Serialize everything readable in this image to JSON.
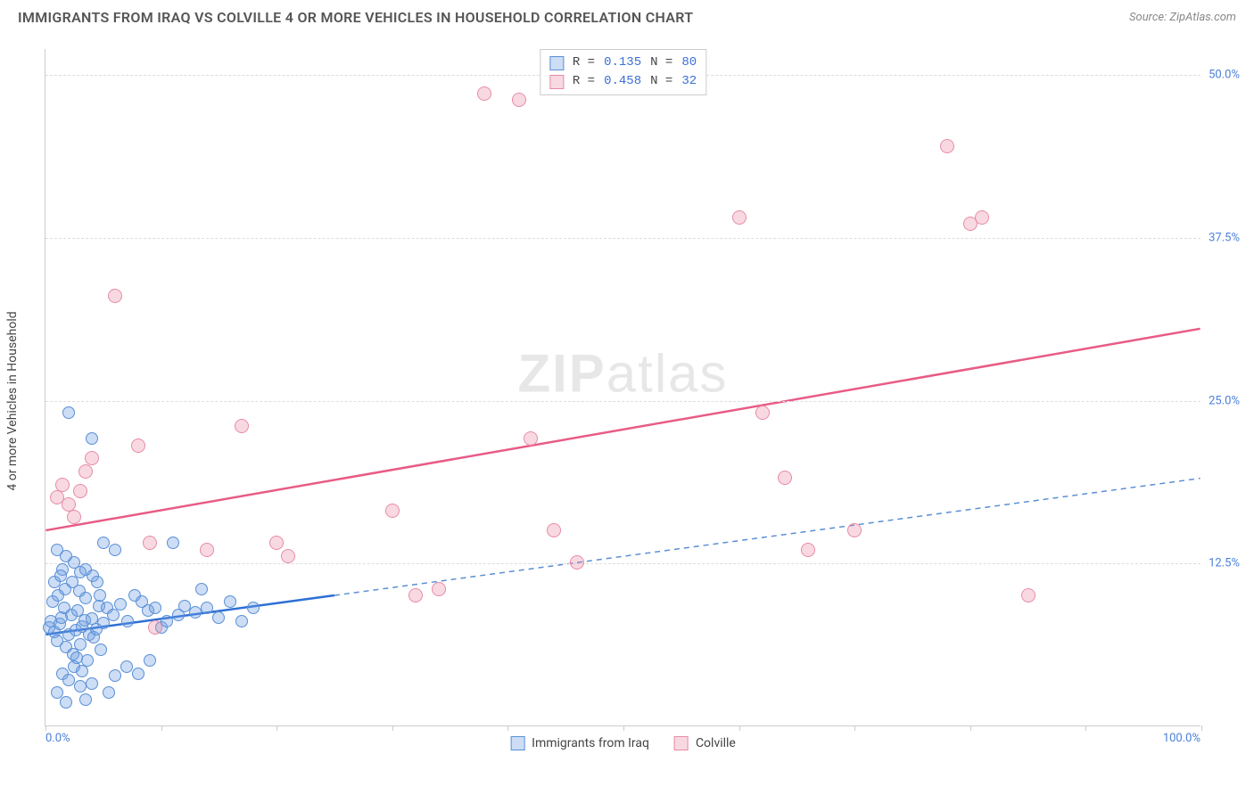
{
  "title": "IMMIGRANTS FROM IRAQ VS COLVILLE 4 OR MORE VEHICLES IN HOUSEHOLD CORRELATION CHART",
  "source": "Source: ZipAtlas.com",
  "ylabel": "4 or more Vehicles in Household",
  "watermark_a": "ZIP",
  "watermark_b": "atlas",
  "chart": {
    "type": "scatter",
    "xlim": [
      0,
      100
    ],
    "ylim": [
      0,
      52
    ],
    "xtick_positions": [
      0,
      10,
      20,
      30,
      40,
      50,
      60,
      70,
      80,
      90,
      100
    ],
    "xtick_labels": {
      "0": "0.0%",
      "100": "100.0%"
    },
    "ytick_positions": [
      12.5,
      25.0,
      37.5,
      50.0
    ],
    "ytick_labels": [
      "12.5%",
      "25.0%",
      "37.5%",
      "50.0%"
    ],
    "grid_color": "#dddddd",
    "axis_color": "#cccccc",
    "background_color": "#ffffff",
    "label_color": "#4a7fd8",
    "series": [
      {
        "name": "Immigrants from Iraq",
        "key": "iraq",
        "R": "0.135",
        "N": "80",
        "fill": "rgba(108,159,227,0.35)",
        "stroke": "#5a8fd6",
        "trend_color": "#2e6fd6",
        "trend_dash_color": "#5a8fd6",
        "marker_radius": 7,
        "trend": {
          "x1": 0,
          "y1": 7.0,
          "x2_solid": 25,
          "y2_solid": 10.0,
          "x2": 100,
          "y2": 19.0
        },
        "points": [
          [
            0.3,
            7.5
          ],
          [
            0.5,
            8.0
          ],
          [
            0.8,
            7.2
          ],
          [
            1.0,
            6.5
          ],
          [
            1.2,
            7.8
          ],
          [
            1.4,
            8.3
          ],
          [
            1.6,
            9.0
          ],
          [
            1.8,
            6.0
          ],
          [
            2.0,
            7.0
          ],
          [
            2.2,
            8.5
          ],
          [
            2.4,
            5.5
          ],
          [
            2.6,
            7.3
          ],
          [
            2.8,
            8.8
          ],
          [
            3.0,
            6.2
          ],
          [
            3.2,
            7.6
          ],
          [
            3.4,
            8.1
          ],
          [
            3.6,
            5.0
          ],
          [
            3.8,
            7.0
          ],
          [
            4.0,
            8.2
          ],
          [
            4.2,
            6.8
          ],
          [
            4.4,
            7.4
          ],
          [
            4.6,
            9.2
          ],
          [
            4.8,
            5.8
          ],
          [
            5.0,
            7.9
          ],
          [
            1.5,
            4.0
          ],
          [
            2.0,
            3.5
          ],
          [
            2.5,
            4.5
          ],
          [
            3.0,
            3.0
          ],
          [
            1.0,
            2.5
          ],
          [
            3.5,
            2.0
          ],
          [
            4.0,
            3.2
          ],
          [
            1.8,
            1.8
          ],
          [
            0.6,
            9.5
          ],
          [
            1.1,
            10.0
          ],
          [
            1.7,
            10.5
          ],
          [
            2.3,
            11.0
          ],
          [
            2.9,
            10.3
          ],
          [
            3.5,
            9.8
          ],
          [
            4.1,
            11.5
          ],
          [
            4.7,
            10.0
          ],
          [
            5.3,
            9.0
          ],
          [
            5.9,
            8.5
          ],
          [
            6.5,
            9.3
          ],
          [
            7.1,
            8.0
          ],
          [
            7.7,
            10.0
          ],
          [
            8.3,
            9.5
          ],
          [
            8.9,
            8.8
          ],
          [
            9.5,
            9.0
          ],
          [
            10.0,
            7.5
          ],
          [
            10.5,
            8.0
          ],
          [
            11.0,
            14.0
          ],
          [
            11.5,
            8.5
          ],
          [
            12.0,
            9.2
          ],
          [
            13.0,
            8.7
          ],
          [
            14.0,
            9.0
          ],
          [
            15.0,
            8.3
          ],
          [
            16.0,
            9.5
          ],
          [
            17.0,
            8.0
          ],
          [
            18.0,
            9.0
          ],
          [
            2.5,
            12.5
          ],
          [
            3.0,
            11.8
          ],
          [
            3.5,
            12.0
          ],
          [
            1.0,
            13.5
          ],
          [
            1.5,
            12.0
          ],
          [
            2.0,
            24.0
          ],
          [
            4.0,
            22.0
          ],
          [
            1.8,
            13.0
          ],
          [
            5.0,
            14.0
          ],
          [
            6.0,
            13.5
          ],
          [
            0.8,
            11.0
          ],
          [
            1.3,
            11.5
          ],
          [
            4.5,
            11.0
          ],
          [
            13.5,
            10.5
          ],
          [
            7.0,
            4.5
          ],
          [
            6.0,
            3.8
          ],
          [
            8.0,
            4.0
          ],
          [
            9.0,
            5.0
          ],
          [
            5.5,
            2.5
          ],
          [
            3.2,
            4.2
          ],
          [
            2.7,
            5.2
          ]
        ]
      },
      {
        "name": "Colville",
        "key": "colville",
        "R": "0.458",
        "N": "32",
        "fill": "rgba(233,130,160,0.30)",
        "stroke": "#e88aa5",
        "trend_color": "#e85b85",
        "marker_radius": 8,
        "trend": {
          "x1": 0,
          "y1": 15.0,
          "x2": 100,
          "y2": 30.5
        },
        "points": [
          [
            1.0,
            17.5
          ],
          [
            1.5,
            18.5
          ],
          [
            2.0,
            17.0
          ],
          [
            2.5,
            16.0
          ],
          [
            3.0,
            18.0
          ],
          [
            3.5,
            19.5
          ],
          [
            4.0,
            20.5
          ],
          [
            6.0,
            33.0
          ],
          [
            8.0,
            21.5
          ],
          [
            9.0,
            14.0
          ],
          [
            9.5,
            7.5
          ],
          [
            14.0,
            13.5
          ],
          [
            17.0,
            23.0
          ],
          [
            20.0,
            14.0
          ],
          [
            21.0,
            13.0
          ],
          [
            30.0,
            16.5
          ],
          [
            32.0,
            10.0
          ],
          [
            34.0,
            10.5
          ],
          [
            42.0,
            22.0
          ],
          [
            44.0,
            15.0
          ],
          [
            46.0,
            12.5
          ],
          [
            38.0,
            48.5
          ],
          [
            60.0,
            39.0
          ],
          [
            62.0,
            24.0
          ],
          [
            64.0,
            19.0
          ],
          [
            66.0,
            13.5
          ],
          [
            70.0,
            15.0
          ],
          [
            78.0,
            44.5
          ],
          [
            80.0,
            38.5
          ],
          [
            81.0,
            39.0
          ],
          [
            85.0,
            10.0
          ],
          [
            41.0,
            48.0
          ]
        ]
      }
    ]
  },
  "legend_top": {
    "R_label": "R =",
    "N_label": "N ="
  },
  "legend_bottom": [
    {
      "label": "Immigrants from Iraq",
      "fill": "rgba(108,159,227,0.35)",
      "stroke": "#5a8fd6"
    },
    {
      "label": "Colville",
      "fill": "rgba(233,130,160,0.30)",
      "stroke": "#e88aa5"
    }
  ]
}
